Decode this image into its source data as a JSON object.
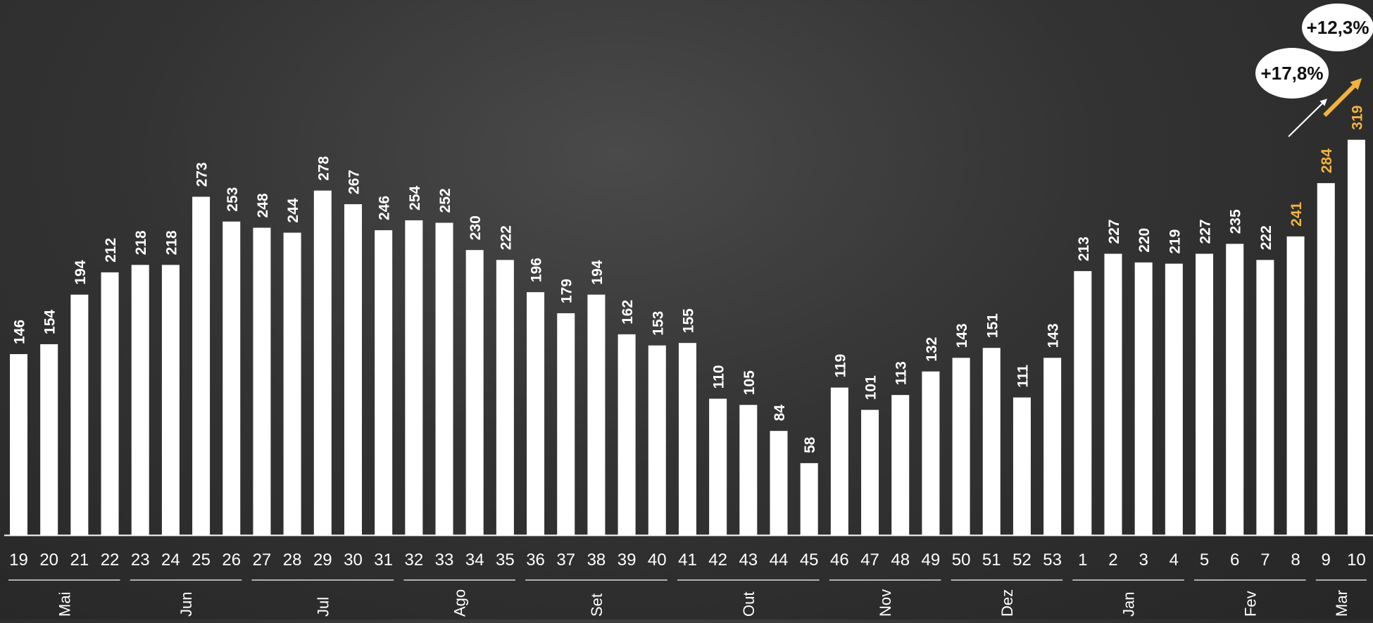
{
  "colors": {
    "bar": "#ffffff",
    "text": "#ffffff",
    "highlight": "#f2b33d",
    "callout_fill": "#ffffff",
    "callout_text": "#111111"
  },
  "chart_data": {
    "type": "bar",
    "categories": [
      "19",
      "20",
      "21",
      "22",
      "23",
      "24",
      "25",
      "26",
      "27",
      "28",
      "29",
      "30",
      "31",
      "32",
      "33",
      "34",
      "35",
      "36",
      "37",
      "38",
      "39",
      "40",
      "41",
      "42",
      "43",
      "44",
      "45",
      "46",
      "47",
      "48",
      "49",
      "50",
      "51",
      "52",
      "53",
      "1",
      "2",
      "3",
      "4",
      "5",
      "6",
      "7",
      "8",
      "9",
      "10"
    ],
    "values": [
      146,
      154,
      194,
      212,
      218,
      218,
      273,
      253,
      248,
      244,
      278,
      267,
      246,
      254,
      252,
      230,
      222,
      196,
      179,
      194,
      162,
      153,
      155,
      110,
      105,
      84,
      58,
      119,
      101,
      113,
      132,
      143,
      151,
      111,
      143,
      213,
      227,
      220,
      219,
      227,
      235,
      222,
      241,
      284,
      319
    ],
    "data_labels": [
      "146",
      "154",
      "194",
      "212",
      "218",
      "218",
      "273",
      "253",
      "248",
      "244",
      "278",
      "267",
      "246",
      "254",
      "252",
      "230",
      "222",
      "196",
      "179",
      "194",
      "162",
      "153",
      "155",
      "110",
      "105",
      "84",
      "58",
      "119",
      "101",
      "113",
      "132",
      "143",
      "151",
      "111",
      "143",
      "213",
      "227",
      "220",
      "219",
      "227",
      "235",
      "222",
      "241",
      "284",
      "319"
    ],
    "highlighted_labels": [
      "8",
      "9",
      "10"
    ],
    "groups": [
      {
        "label": "Mai",
        "first": 0,
        "last": 3
      },
      {
        "label": "Jun",
        "first": 4,
        "last": 7
      },
      {
        "label": "Jul",
        "first": 8,
        "last": 12
      },
      {
        "label": "Ago",
        "first": 13,
        "last": 16
      },
      {
        "label": "Set",
        "first": 17,
        "last": 21
      },
      {
        "label": "Out",
        "first": 22,
        "last": 26
      },
      {
        "label": "Nov",
        "first": 27,
        "last": 30
      },
      {
        "label": "Dez",
        "first": 31,
        "last": 34
      },
      {
        "label": "Jan",
        "first": 35,
        "last": 38
      },
      {
        "label": "Fev",
        "first": 39,
        "last": 42
      },
      {
        "label": "Mar",
        "first": 43,
        "last": 44
      }
    ],
    "ylim": [
      0,
      360
    ],
    "grid": false,
    "legend": "none",
    "annotations": [
      {
        "text": "+17,8%",
        "style": "white-arrow",
        "from_category": "8",
        "to_category": "9"
      },
      {
        "text": "+12,3%",
        "style": "orange-arrow",
        "from_category": "9",
        "to_category": "10"
      }
    ]
  }
}
